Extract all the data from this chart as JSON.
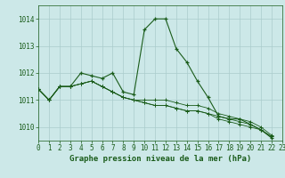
{
  "title": "Graphe pression niveau de la mer (hPa)",
  "background_color": "#cce8e8",
  "plot_bg_color": "#cce8e8",
  "grid_color": "#aacccc",
  "line_color": "#1a5c1a",
  "xlim": [
    0,
    23
  ],
  "ylim": [
    1009.5,
    1014.5
  ],
  "yticks": [
    1010,
    1011,
    1012,
    1013,
    1014
  ],
  "xticks": [
    0,
    1,
    2,
    3,
    4,
    5,
    6,
    7,
    8,
    9,
    10,
    11,
    12,
    13,
    14,
    15,
    16,
    17,
    18,
    19,
    20,
    21,
    22,
    23
  ],
  "series": [
    [
      1011.4,
      1011.0,
      1011.5,
      1011.5,
      1012.0,
      1011.9,
      1011.8,
      1012.0,
      1011.3,
      1011.2,
      1013.6,
      1014.0,
      1014.0,
      1012.9,
      1012.4,
      1011.7,
      1011.1,
      1010.4,
      1010.3,
      1010.3,
      1010.1,
      1009.9,
      1009.6
    ],
    [
      1011.4,
      1011.0,
      1011.5,
      1011.5,
      1011.6,
      1011.7,
      1011.5,
      1011.3,
      1011.1,
      1011.0,
      1011.0,
      1011.0,
      1011.0,
      1010.9,
      1010.8,
      1010.8,
      1010.7,
      1010.5,
      1010.4,
      1010.3,
      1010.2,
      1010.0,
      1009.7
    ],
    [
      1011.4,
      1011.0,
      1011.5,
      1011.5,
      1011.6,
      1011.7,
      1011.5,
      1011.3,
      1011.1,
      1011.0,
      1010.9,
      1010.8,
      1010.8,
      1010.7,
      1010.6,
      1010.6,
      1010.5,
      1010.4,
      1010.3,
      1010.2,
      1010.1,
      1009.9,
      1009.65
    ],
    [
      1011.4,
      1011.0,
      1011.5,
      1011.5,
      1011.6,
      1011.7,
      1011.5,
      1011.3,
      1011.1,
      1011.0,
      1010.9,
      1010.8,
      1010.8,
      1010.7,
      1010.6,
      1010.6,
      1010.5,
      1010.3,
      1010.2,
      1010.1,
      1010.0,
      1009.9,
      1009.65
    ]
  ],
  "series_x": [
    [
      0,
      1,
      2,
      3,
      4,
      5,
      6,
      7,
      8,
      9,
      10,
      11,
      12,
      13,
      14,
      15,
      16,
      17,
      18,
      19,
      20,
      21,
      22
    ],
    [
      0,
      1,
      2,
      3,
      4,
      5,
      6,
      7,
      8,
      9,
      10,
      11,
      12,
      13,
      14,
      15,
      16,
      17,
      18,
      19,
      20,
      21,
      22
    ],
    [
      0,
      1,
      2,
      3,
      4,
      5,
      6,
      7,
      8,
      9,
      10,
      11,
      12,
      13,
      14,
      15,
      16,
      17,
      18,
      19,
      20,
      21,
      22
    ],
    [
      0,
      1,
      2,
      3,
      4,
      5,
      6,
      7,
      8,
      9,
      10,
      11,
      12,
      13,
      14,
      15,
      16,
      17,
      18,
      19,
      20,
      21,
      22
    ]
  ],
  "title_fontsize": 6.5,
  "tick_fontsize": 5.5
}
